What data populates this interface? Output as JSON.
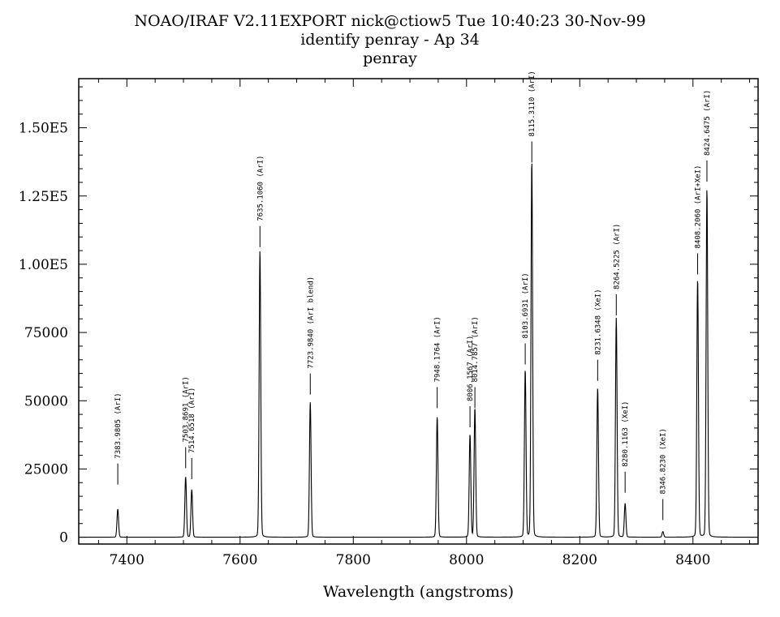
{
  "header": {
    "line1": "NOAO/IRAF V2.11EXPORT nick@ctiow5 Tue 10:40:23 30-Nov-99",
    "line2": "identify penray - Ap 34",
    "line3": "penray"
  },
  "chart_data": {
    "type": "line",
    "title": "NOAO/IRAF V2.11EXPORT nick@ctiow5 Tue 10:40:23 30-Nov-99",
    "subtitle": "identify penray - Ap 34",
    "xlabel": "Wavelength (angstroms)",
    "ylabel": "",
    "xlim": [
      7315,
      8515
    ],
    "ylim": [
      -2500,
      168000
    ],
    "grid": false,
    "x_ticks": [
      {
        "value": 7400,
        "label": "7400"
      },
      {
        "value": 7600,
        "label": "7600"
      },
      {
        "value": 7800,
        "label": "7800"
      },
      {
        "value": 8000,
        "label": "8000"
      },
      {
        "value": 8200,
        "label": "8200"
      },
      {
        "value": 8400,
        "label": "8400"
      }
    ],
    "y_ticks": [
      {
        "value": 0,
        "label": "0"
      },
      {
        "value": 25000,
        "label": "25000"
      },
      {
        "value": 50000,
        "label": "50000"
      },
      {
        "value": 75000,
        "label": "75000"
      },
      {
        "value": 100000,
        "label": "1.00E5"
      },
      {
        "value": 125000,
        "label": "1.25E5"
      },
      {
        "value": 150000,
        "label": "1.50E5"
      }
    ],
    "series": [
      {
        "peaks": [
          {
            "x": 7383.98,
            "y": 10000
          },
          {
            "x": 7503.87,
            "y": 21500
          },
          {
            "x": 7514.65,
            "y": 17000
          },
          {
            "x": 7635.11,
            "y": 102000
          },
          {
            "x": 7723.98,
            "y": 48000
          },
          {
            "x": 7948.18,
            "y": 43000
          },
          {
            "x": 8006.16,
            "y": 36500
          },
          {
            "x": 8014.79,
            "y": 46000
          },
          {
            "x": 8103.69,
            "y": 59500
          },
          {
            "x": 8115.31,
            "y": 134000
          },
          {
            "x": 8231.63,
            "y": 53000
          },
          {
            "x": 8264.52,
            "y": 78000
          },
          {
            "x": 8280.12,
            "y": 12000
          },
          {
            "x": 8346.82,
            "y": 2000
          },
          {
            "x": 8408.21,
            "y": 92000
          },
          {
            "x": 8424.65,
            "y": 124000
          }
        ]
      }
    ],
    "line_ids": [
      {
        "x": 7383.98,
        "tick_top": 27000,
        "label": "7383.9805 (ArI)"
      },
      {
        "x": 7503.87,
        "tick_top": 33000,
        "label": "7503.8691 (ArI)"
      },
      {
        "x": 7514.65,
        "tick_top": 29000,
        "label": "7514.6518 (ArI)"
      },
      {
        "x": 7635.11,
        "tick_top": 114000,
        "label": "7635.1060 (ArI)"
      },
      {
        "x": 7723.98,
        "tick_top": 60000,
        "label": "7723.9840 (ArI blend)"
      },
      {
        "x": 7948.18,
        "tick_top": 55000,
        "label": "7948.1764 (ArI)"
      },
      {
        "x": 8006.16,
        "tick_top": 48000,
        "label": "8006.1567 (ArI)"
      },
      {
        "x": 8014.79,
        "tick_top": 55000,
        "label": "8014.7857 (ArI)"
      },
      {
        "x": 8103.69,
        "tick_top": 71000,
        "label": "8103.6931 (ArI)"
      },
      {
        "x": 8115.31,
        "tick_top": 145000,
        "label": "8115.3110 (ArI)"
      },
      {
        "x": 8231.63,
        "tick_top": 65000,
        "label": "8231.6348 (XeI)"
      },
      {
        "x": 8264.52,
        "tick_top": 89000,
        "label": "8264.5225 (ArI)"
      },
      {
        "x": 8280.12,
        "tick_top": 24000,
        "label": "8280.1163 (XeI)"
      },
      {
        "x": 8346.82,
        "tick_top": 14000,
        "label": "8346.8230 (XeI)"
      },
      {
        "x": 8408.21,
        "tick_top": 104000,
        "label": "8408.2060 (ArI+XeI)"
      },
      {
        "x": 8424.65,
        "tick_top": 138000,
        "label": "8424.6475 (ArI)"
      }
    ]
  }
}
